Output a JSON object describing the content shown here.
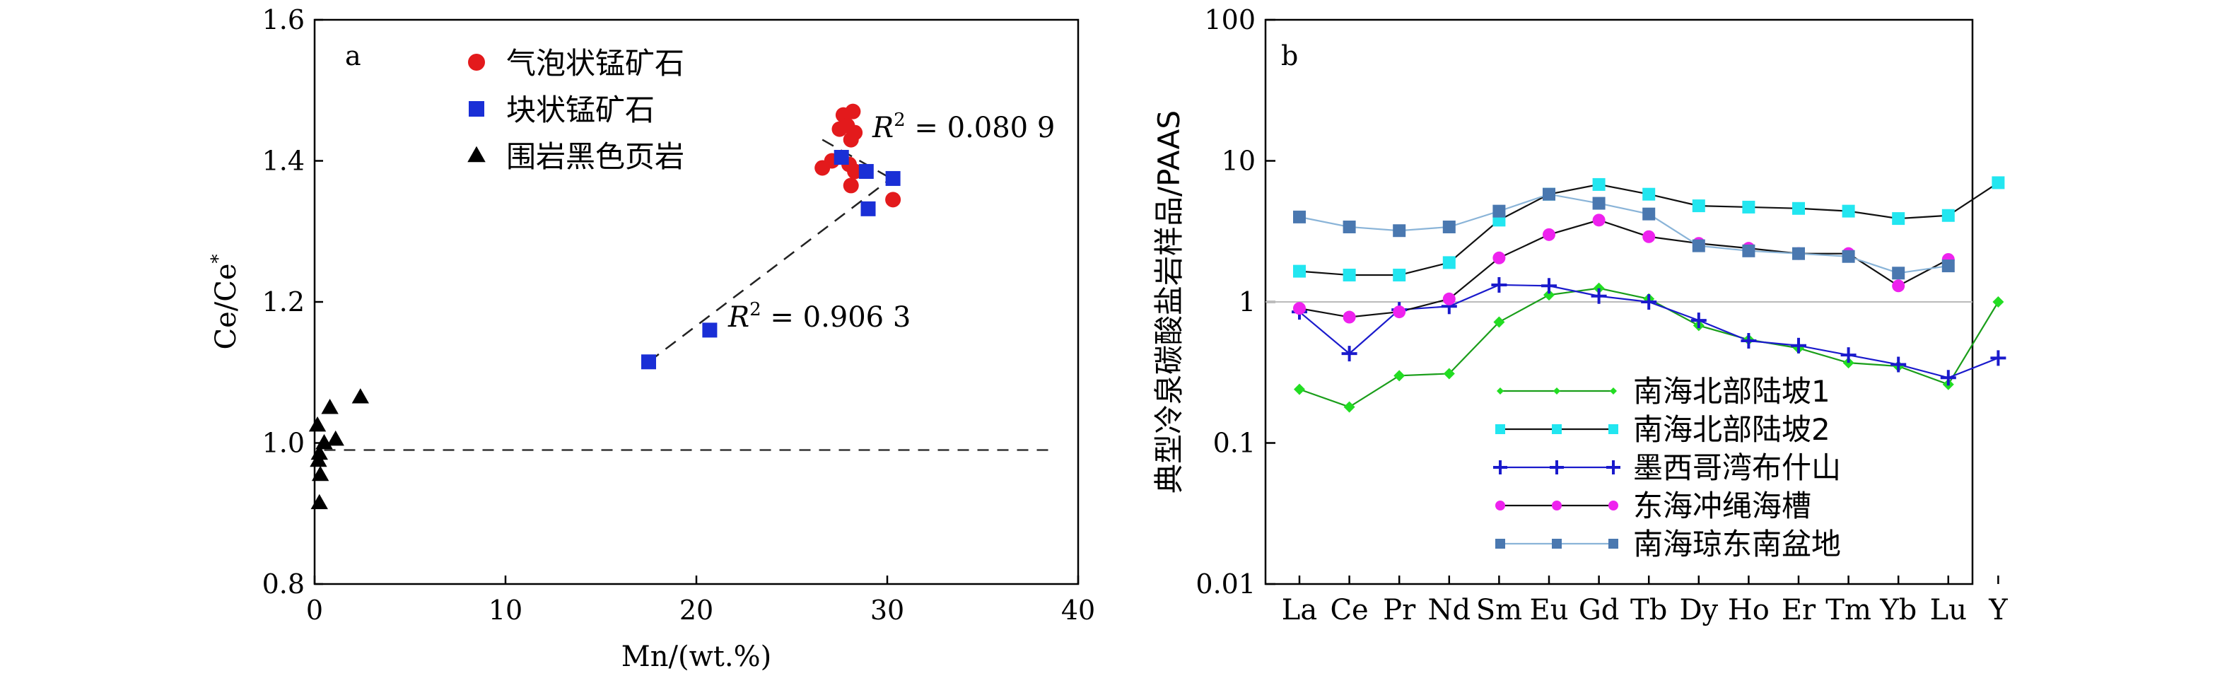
{
  "chart_data": [
    {
      "panel_label": "a",
      "type": "scatter",
      "xlabel": "Mn/(wt.%)",
      "ylabel_main": "Ce/Ce",
      "ylabel_sup": "*",
      "xlim": [
        0,
        40
      ],
      "ylim": [
        0.8,
        1.6
      ],
      "xticks": [
        0,
        10,
        20,
        30,
        40
      ],
      "yticks": [
        0.8,
        1.0,
        1.2,
        1.4,
        1.6
      ],
      "reference_line_y": 0.99,
      "series": [
        {
          "name": "气泡状锰矿石",
          "marker": "circle",
          "color": "#e31a1c",
          "points": [
            [
              26.6,
              1.39
            ],
            [
              27.1,
              1.4
            ],
            [
              27.5,
              1.445
            ],
            [
              27.7,
              1.465
            ],
            [
              27.9,
              1.45
            ],
            [
              28.2,
              1.47
            ],
            [
              28.3,
              1.44
            ],
            [
              28.1,
              1.43
            ],
            [
              28.0,
              1.395
            ],
            [
              28.3,
              1.385
            ],
            [
              28.1,
              1.365
            ],
            [
              30.3,
              1.345
            ]
          ]
        },
        {
          "name": "块状锰矿石",
          "marker": "square",
          "color": "#1a2fd6",
          "points": [
            [
              17.5,
              1.115
            ],
            [
              20.7,
              1.16
            ],
            [
              27.6,
              1.405
            ],
            [
              28.9,
              1.385
            ],
            [
              29.0,
              1.332
            ],
            [
              30.3,
              1.375
            ]
          ]
        },
        {
          "name": "围岩黑色页岩",
          "marker": "triangle",
          "color": "#000000",
          "points": [
            [
              0.15,
              1.025
            ],
            [
              0.25,
              0.985
            ],
            [
              0.2,
              0.975
            ],
            [
              0.3,
              0.955
            ],
            [
              0.25,
              0.915
            ],
            [
              0.5,
              1.0
            ],
            [
              0.8,
              1.05
            ],
            [
              1.1,
              1.005
            ],
            [
              2.4,
              1.065
            ]
          ]
        }
      ],
      "trendlines": [
        {
          "label_r": "R",
          "label_sup": "2",
          "label_value": " = 0.906 3",
          "from": [
            17.5,
            1.115
          ],
          "to": [
            30.2,
            1.375
          ]
        },
        {
          "label_r": "R",
          "label_sup": "2",
          "label_value": " = 0.080 9",
          "from": [
            26.6,
            1.43
          ],
          "to": [
            30.2,
            1.375
          ]
        }
      ]
    },
    {
      "panel_label": "b",
      "type": "line",
      "ylabel": "典型冷泉碳酸盐岩样品/PAAS",
      "yscale": "log",
      "ylim": [
        0.01,
        100
      ],
      "ytick_labels": [
        "0.01",
        "0.1",
        "1",
        "10",
        "100"
      ],
      "reference_line_y": 1,
      "categories": [
        "La",
        "Ce",
        "Pr",
        "Nd",
        "Sm",
        "Eu",
        "Gd",
        "Tb",
        "Dy",
        "Ho",
        "Er",
        "Tm",
        "Yb",
        "Lu",
        "Y"
      ],
      "series": [
        {
          "name": "南海北部陆坡1",
          "marker": "diamond",
          "color": "#22dd22",
          "line": "#1a9e1a",
          "values": [
            0.24,
            0.18,
            0.3,
            0.31,
            0.72,
            1.12,
            1.25,
            1.05,
            0.68,
            0.54,
            0.47,
            0.37,
            0.35,
            0.26,
            1.0
          ]
        },
        {
          "name": "南海北部陆坡2",
          "marker": "square",
          "color": "#22e6f0",
          "line": "#111111",
          "values": [
            1.65,
            1.55,
            1.55,
            1.9,
            3.8,
            5.8,
            6.8,
            5.8,
            4.8,
            4.7,
            4.6,
            4.4,
            3.9,
            4.1,
            7.0
          ]
        },
        {
          "name": "墨西哥湾布什山",
          "marker": "plus",
          "color": "#1a1acc",
          "line": "#1a1acc",
          "values": [
            0.85,
            0.43,
            0.88,
            0.93,
            1.32,
            1.3,
            1.1,
            1.0,
            0.74,
            0.53,
            0.49,
            0.42,
            0.36,
            0.29,
            0.4
          ]
        },
        {
          "name": "东海冲绳海槽",
          "marker": "circle",
          "color": "#ee22ee",
          "line": "#111111",
          "values": [
            0.9,
            0.78,
            0.85,
            1.05,
            2.05,
            3.0,
            3.8,
            2.9,
            2.6,
            2.4,
            2.2,
            2.2,
            1.3,
            2.0,
            null
          ]
        },
        {
          "name": "南海琼东南盆地",
          "marker": "square",
          "color": "#4a78b0",
          "line": "#8ab4d8",
          "values": [
            4.0,
            3.4,
            3.2,
            3.4,
            4.4,
            5.8,
            5.0,
            4.2,
            2.5,
            2.3,
            2.2,
            2.1,
            1.6,
            1.8,
            null
          ]
        }
      ]
    }
  ]
}
